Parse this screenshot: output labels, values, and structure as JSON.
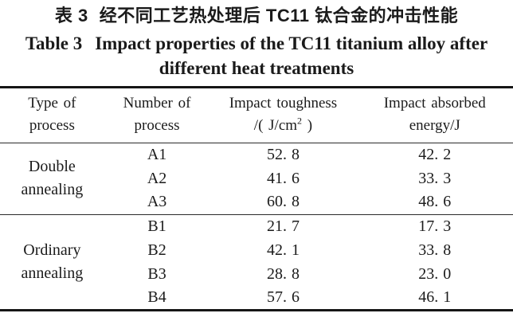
{
  "colors": {
    "background": "#ffffff",
    "text": "#1b1b1b",
    "rule": "#161616"
  },
  "caption": {
    "cn_label": "表 3",
    "cn_text": "经不同工艺热处理后 TC11 钛合金的冲击性能",
    "en_label": "Table 3",
    "en_line1": "Impact properties of the TC11 titanium alloy after",
    "en_line2": "different heat treatments"
  },
  "table": {
    "columns": [
      {
        "line1": "Type of",
        "line2": "process"
      },
      {
        "line1": "Number of",
        "line2": "process"
      },
      {
        "line1": "Impact toughness",
        "unit_prefix": "/( J/cm",
        "unit_sup": "2",
        "unit_suffix": " )"
      },
      {
        "line1": "Impact absorbed",
        "line2": "energy/J"
      }
    ],
    "groups": [
      {
        "label": "Double annealing",
        "rows": [
          {
            "number": "A1",
            "toughness": "52. 8",
            "energy": "42. 2"
          },
          {
            "number": "A2",
            "toughness": "41. 6",
            "energy": "33. 3"
          },
          {
            "number": "A3",
            "toughness": "60. 8",
            "energy": "48. 6"
          }
        ]
      },
      {
        "label": "Ordinary annealing",
        "rows": [
          {
            "number": "B1",
            "toughness": "21. 7",
            "energy": "17. 3"
          },
          {
            "number": "B2",
            "toughness": "42. 1",
            "energy": "33. 8"
          },
          {
            "number": "B3",
            "toughness": "28. 8",
            "energy": "23. 0"
          },
          {
            "number": "B4",
            "toughness": "57. 6",
            "energy": "46. 1"
          }
        ]
      }
    ]
  }
}
